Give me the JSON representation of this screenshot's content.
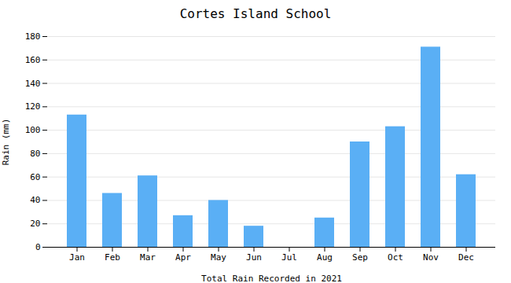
{
  "chart_data": {
    "type": "bar",
    "title": "Cortes Island School",
    "xlabel": "Total Rain Recorded in 2021",
    "ylabel": "Rain (mm)",
    "categories": [
      "Jan",
      "Feb",
      "Mar",
      "Apr",
      "May",
      "Jun",
      "Jul",
      "Aug",
      "Sep",
      "Oct",
      "Nov",
      "Dec"
    ],
    "values": [
      113,
      46,
      61,
      27,
      40,
      18,
      0,
      25,
      90,
      103,
      171,
      62
    ],
    "color": "#5aaff5",
    "ylim": [
      0,
      180
    ],
    "yticks": [
      0,
      20,
      40,
      60,
      80,
      100,
      120,
      140,
      160,
      180
    ],
    "grid": true
  }
}
